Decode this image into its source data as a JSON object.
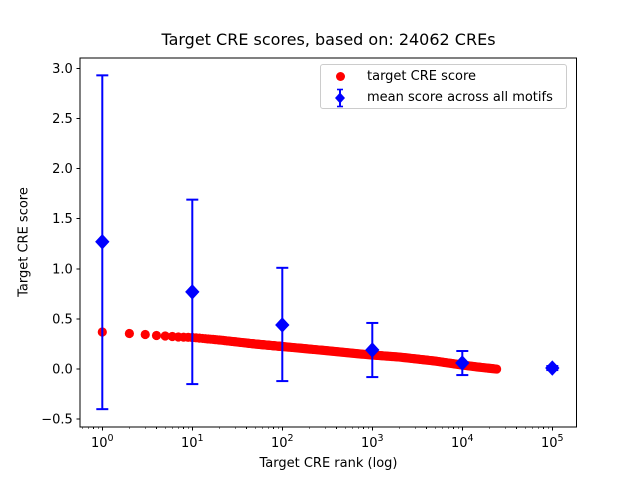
{
  "figure": {
    "title": "Target CRE scores, based on: 24062 CREs",
    "xlabel": "Target CRE rank (log)",
    "ylabel": "Target CRE score",
    "background": "#ffffff",
    "axes_border_color": "#000000"
  },
  "legend": {
    "border_color": "#cccccc",
    "items": [
      {
        "label": "target CRE score",
        "marker": "red-circle",
        "color": "#ff0000"
      },
      {
        "label": "mean score across all motifs",
        "marker": "blue-diamond-errorbar",
        "color": "#0000ff"
      }
    ]
  },
  "chart_data": {
    "type": "scatter",
    "title": "Target CRE scores, based on: 24062 CREs",
    "xlabel": "Target CRE rank (log)",
    "ylabel": "Target CRE score",
    "x_scale": "log",
    "grid": false,
    "legend_position": "upper right",
    "xlim_log10": [
      -0.25,
      5.27
    ],
    "ylim": [
      -0.577,
      3.103
    ],
    "x_tick_exponents": [
      0,
      1,
      2,
      3,
      4,
      5
    ],
    "y_ticks": [
      {
        "value": 3.0,
        "label": "3.0"
      },
      {
        "value": 2.5,
        "label": "2.5"
      },
      {
        "value": 2.0,
        "label": "2.0"
      },
      {
        "value": 1.5,
        "label": "1.5"
      },
      {
        "value": 1.0,
        "label": "1.0"
      },
      {
        "value": 0.5,
        "label": "0.5"
      },
      {
        "value": 0.0,
        "label": "0.0"
      },
      {
        "value": -0.5,
        "label": "−0.5"
      }
    ],
    "series": [
      {
        "name": "target CRE score",
        "color": "#ff0000",
        "marker": "circle",
        "n_points": 24062,
        "rank_range": [
          1,
          24062
        ],
        "trend_anchors": {
          "ranks": [
            1,
            2,
            3,
            4,
            5,
            7,
            10,
            20,
            50,
            100,
            300,
            790,
            1000,
            2000,
            5000,
            10000,
            15000,
            24062
          ],
          "scores": [
            0.37,
            0.355,
            0.345,
            0.335,
            0.33,
            0.32,
            0.315,
            0.29,
            0.25,
            0.225,
            0.185,
            0.148,
            0.14,
            0.12,
            0.08,
            0.04,
            0.02,
            0.0
          ]
        }
      },
      {
        "name": "mean score across all motifs",
        "color": "#0000ff",
        "marker": "diamond",
        "points": [
          {
            "rank": 1,
            "mean": 1.27,
            "upper": 2.93,
            "lower": -0.4
          },
          {
            "rank": 10,
            "mean": 0.77,
            "upper": 1.69,
            "lower": -0.15
          },
          {
            "rank": 100,
            "mean": 0.44,
            "upper": 1.01,
            "lower": -0.12
          },
          {
            "rank": 1000,
            "mean": 0.19,
            "upper": 0.46,
            "lower": -0.08
          },
          {
            "rank": 10000,
            "mean": 0.06,
            "upper": 0.18,
            "lower": -0.06
          },
          {
            "rank": 100000,
            "mean": 0.01,
            "upper": 0.03,
            "lower": -0.01
          }
        ]
      }
    ]
  }
}
